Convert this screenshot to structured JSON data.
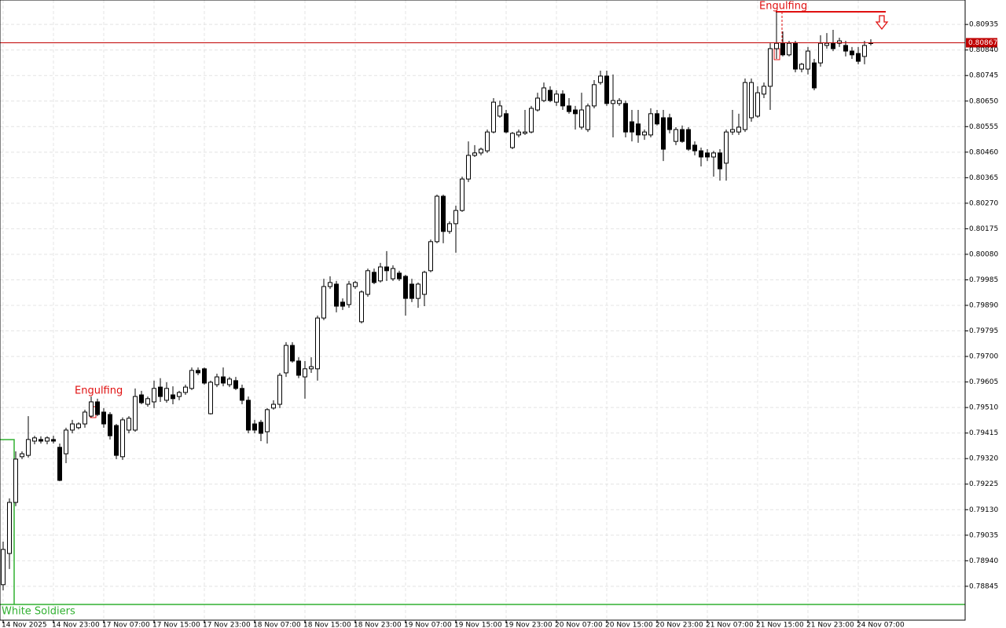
{
  "chart_data": {
    "type": "candlestick",
    "grid": true,
    "up_color": "#ffffff",
    "down_color": "#000000",
    "outline_color": "#000000",
    "current_price": 0.80867,
    "current_price_color": "#c00000",
    "annotations": [
      "Engulfing",
      "Engulfing",
      "White Soldiers"
    ],
    "ylim": [
      0.78719,
      0.81026
    ],
    "yticks": [
      0.80935,
      {
        "value": 0.8084,
        "label": "0.80840"
      },
      0.80745,
      {
        "value": 0.8065,
        "label": "0.80650"
      },
      0.80555,
      {
        "value": 0.8046,
        "label": "0.80460"
      },
      0.80365,
      {
        "value": 0.8027,
        "label": "0.80270"
      },
      0.80175,
      {
        "value": 0.8008,
        "label": "0.80080"
      },
      0.79985,
      {
        "value": 0.7989,
        "label": "0.79890"
      },
      0.79795,
      {
        "value": 0.797,
        "label": "0.79700"
      },
      0.79605,
      {
        "value": 0.7951,
        "label": "0.79510"
      },
      0.79415,
      {
        "value": 0.7932,
        "label": "0.79320"
      },
      0.79225,
      {
        "value": 0.7913,
        "label": "0.79130"
      },
      0.79035,
      {
        "value": 0.7894,
        "label": "0.78940"
      },
      0.78845
    ],
    "categories": [
      "14 Nov 2025",
      null,
      null,
      null,
      null,
      null,
      null,
      null,
      "14 Nov 23:00",
      null,
      null,
      null,
      null,
      null,
      null,
      null,
      "17 Nov 07:00",
      null,
      null,
      null,
      null,
      null,
      null,
      null,
      "17 Nov 15:00",
      null,
      null,
      null,
      null,
      null,
      null,
      null,
      "17 Nov 23:00",
      null,
      null,
      null,
      null,
      null,
      null,
      null,
      "18 Nov 07:00",
      null,
      null,
      null,
      null,
      null,
      null,
      null,
      "18 Nov 15:00",
      null,
      null,
      null,
      null,
      null,
      null,
      null,
      "18 Nov 23:00",
      null,
      null,
      null,
      null,
      null,
      null,
      null,
      "19 Nov 07:00",
      null,
      null,
      null,
      null,
      null,
      null,
      null,
      "19 Nov 15:00",
      null,
      null,
      null,
      null,
      null,
      null,
      null,
      "19 Nov 23:00",
      null,
      null,
      null,
      null,
      null,
      null,
      null,
      "20 Nov 07:00",
      null,
      null,
      null,
      null,
      null,
      null,
      null,
      "20 Nov 15:00",
      null,
      null,
      null,
      null,
      null,
      null,
      null,
      "20 Nov 23:00",
      null,
      null,
      null,
      null,
      null,
      null,
      null,
      "21 Nov 07:00",
      null,
      null,
      null,
      null,
      null,
      null,
      null,
      "21 Nov 15:00",
      null,
      null,
      null,
      null,
      null,
      null,
      null,
      "21 Nov 23:00",
      null,
      null,
      null,
      null,
      null,
      null,
      null,
      "24 Nov 07:00",
      null,
      null
    ],
    "open": [
      0.78851,
      0.78967,
      0.79157,
      0.79327,
      0.79332,
      0.79385,
      0.79391,
      0.79385,
      0.79391,
      0.79362,
      0.79338,
      0.79426,
      0.79435,
      0.79449,
      0.79478,
      0.79531,
      0.79493,
      0.79484,
      0.79443,
      0.79327,
      0.79426,
      0.79426,
      0.79557,
      0.79522,
      0.79531,
      0.79586,
      0.79537,
      0.79557,
      0.79551,
      0.79566,
      0.79581,
      0.79648,
      0.79654,
      0.79487,
      0.79595,
      0.79624,
      0.79595,
      0.7961,
      0.79581,
      0.79537,
      0.79449,
      0.79455,
      0.7942,
      0.79508,
      0.79522,
      0.79639,
      0.79741,
      0.79683,
      0.79624,
      0.79654,
      0.79654,
      0.79843,
      0.7996,
      0.79969,
      0.79902,
      0.79893,
      0.7996,
      0.79829,
      0.79931,
      0.80013,
      0.79981,
      0.80033,
      0.79989,
      0.8001,
      0.79998,
      0.79969,
      0.79916,
      0.79931,
      0.80019,
      0.80127,
      0.80296,
      0.80165,
      0.80194,
      0.80243,
      0.8036,
      0.80448,
      0.80457,
      0.80465,
      0.80535,
      0.80594,
      0.80603,
      0.80477,
      0.80524,
      0.8053,
      0.80535,
      0.80617,
      0.80652,
      0.8069,
      0.80646,
      0.80676,
      0.80632,
      0.80617,
      0.80553,
      0.80544,
      0.80632,
      0.80719,
      0.80743,
      0.80641,
      0.80641,
      0.80641,
      0.80573,
      0.80565,
      0.80524,
      0.80524,
      0.80603,
      0.80588,
      0.80588,
      0.805,
      0.80544,
      0.80544,
      0.80486,
      0.80465,
      0.80457,
      0.80442,
      0.80457,
      0.80419,
      0.80535,
      0.80535,
      0.80544,
      0.80588,
      0.80594,
      0.80676,
      0.80705,
      0.80845,
      0.80865,
      0.80822,
      0.80865,
      0.80769,
      0.80769,
      0.80792,
      0.80792,
      0.80857,
      0.80865,
      0.80865,
      0.80857,
      0.80836,
      0.80827,
      0.80816,
      0.80865
    ],
    "high": [
      0.79011,
      0.79172,
      0.79347,
      0.79347,
      0.79478,
      0.79405,
      0.79403,
      0.79403,
      0.79405,
      0.79376,
      0.79435,
      0.79464,
      0.79455,
      0.79502,
      0.79551,
      0.79543,
      0.79508,
      0.79493,
      0.79449,
      0.79473,
      0.79478,
      0.79581,
      0.79572,
      0.79551,
      0.7961,
      0.79619,
      0.79604,
      0.79589,
      0.79572,
      0.79595,
      0.79659,
      0.79659,
      0.79659,
      0.7961,
      0.79636,
      0.79659,
      0.79624,
      0.79624,
      0.79595,
      0.79551,
      0.79464,
      0.79464,
      0.79508,
      0.79537,
      0.79639,
      0.79753,
      0.79753,
      0.79697,
      0.79683,
      0.79697,
      0.79852,
      0.79989,
      0.79998,
      0.79981,
      0.79916,
      0.79981,
      0.79981,
      0.79946,
      0.80027,
      0.80027,
      0.80048,
      0.80092,
      0.80039,
      0.80019,
      0.80004,
      0.79989,
      0.79975,
      0.80019,
      0.80135,
      0.80302,
      0.80302,
      0.80203,
      0.80261,
      0.80369,
      0.805,
      0.80486,
      0.80477,
      0.80544,
      0.80661,
      0.80652,
      0.80617,
      0.80535,
      0.80544,
      0.80617,
      0.80632,
      0.80681,
      0.80719,
      0.80705,
      0.8069,
      0.8069,
      0.80661,
      0.80632,
      0.80681,
      0.80641,
      0.80728,
      0.80763,
      0.80763,
      0.80749,
      0.80661,
      0.80652,
      0.80617,
      0.80617,
      0.80544,
      0.80623,
      0.80617,
      0.80617,
      0.80603,
      0.80553,
      0.80559,
      0.80553,
      0.805,
      0.80477,
      0.80471,
      0.80465,
      0.80471,
      0.80544,
      0.80617,
      0.80603,
      0.80734,
      0.80734,
      0.80705,
      0.80719,
      0.80865,
      0.80982,
      0.80909,
      0.80874,
      0.80874,
      0.80792,
      0.80851,
      0.80807,
      0.80895,
      0.80903,
      0.80915,
      0.80886,
      0.80874,
      0.80851,
      0.80851,
      0.80874,
      0.8088
    ],
    "low": [
      0.7883,
      0.78909,
      0.79143,
      0.79318,
      0.79324,
      0.79373,
      0.79376,
      0.79373,
      0.79376,
      0.79236,
      0.79303,
      0.79414,
      0.79429,
      0.79435,
      0.79473,
      0.79478,
      0.79435,
      0.79391,
      0.79318,
      0.79315,
      0.79414,
      0.7942,
      0.79522,
      0.79513,
      0.79508,
      0.79531,
      0.79528,
      0.79522,
      0.79537,
      0.79557,
      0.79575,
      0.7963,
      0.79595,
      0.79484,
      0.79586,
      0.79589,
      0.79586,
      0.79575,
      0.79522,
      0.79414,
      0.79414,
      0.79385,
      0.79376,
      0.79502,
      0.79508,
      0.79624,
      0.79677,
      0.79619,
      0.79543,
      0.79639,
      0.7961,
      0.79835,
      0.79951,
      0.79864,
      0.79873,
      0.79881,
      0.79951,
      0.79823,
      0.79922,
      0.79969,
      0.79975,
      0.79981,
      0.79981,
      0.79981,
      0.79852,
      0.79902,
      0.79881,
      0.79887,
      0.80013,
      0.80121,
      0.80121,
      0.80156,
      0.80086,
      0.80238,
      0.80349,
      0.80442,
      0.80448,
      0.80457,
      0.8053,
      0.80588,
      0.8053,
      0.80471,
      0.80515,
      0.80524,
      0.8053,
      0.80611,
      0.80646,
      0.80646,
      0.80632,
      0.80617,
      0.80603,
      0.80544,
      0.80544,
      0.80535,
      0.80623,
      0.80711,
      0.80632,
      0.80515,
      0.80632,
      0.80515,
      0.805,
      0.80495,
      0.80506,
      0.80515,
      0.80559,
      0.80427,
      0.8053,
      0.80486,
      0.80495,
      0.80465,
      0.80448,
      0.80407,
      0.80427,
      0.80369,
      0.80354,
      0.80354,
      0.80524,
      0.80524,
      0.80535,
      0.80573,
      0.80588,
      0.80661,
      0.80617,
      0.80807,
      0.80816,
      0.80816,
      0.80757,
      0.80757,
      0.80749,
      0.8069,
      0.80778,
      0.80845,
      0.80836,
      0.80851,
      0.80816,
      0.80807,
      0.80787,
      0.80787,
      0.80857
    ],
    "close": [
      0.78982,
      0.79157,
      0.79318,
      0.79338,
      0.79391,
      0.79397,
      0.79385,
      0.79397,
      0.79385,
      0.79239,
      0.79426,
      0.79449,
      0.79449,
      0.79493,
      0.79531,
      0.79484,
      0.79449,
      0.79405,
      0.79332,
      0.79464,
      0.7947,
      0.79551,
      0.79528,
      0.79543,
      0.79581,
      0.79551,
      0.79581,
      0.79543,
      0.79566,
      0.79586,
      0.79648,
      0.79639,
      0.79601,
      0.79604,
      0.79624,
      0.79601,
      0.79616,
      0.79581,
      0.79537,
      0.79426,
      0.79426,
      0.79414,
      0.79502,
      0.79522,
      0.7963,
      0.79741,
      0.79683,
      0.7963,
      0.79654,
      0.79662,
      0.79843,
      0.7996,
      0.79975,
      0.79887,
      0.79887,
      0.79969,
      0.79975,
      0.7994,
      0.80019,
      0.79975,
      0.80033,
      0.80019,
      0.80027,
      0.79989,
      0.79916,
      0.79916,
      0.79969,
      0.80013,
      0.80127,
      0.80296,
      0.80165,
      0.80194,
      0.80243,
      0.8036,
      0.80448,
      0.80457,
      0.80471,
      0.80535,
      0.80646,
      0.80632,
      0.80535,
      0.8053,
      0.80535,
      0.80535,
      0.80623,
      0.80661,
      0.80699,
      0.80652,
      0.80676,
      0.80632,
      0.80611,
      0.80603,
      0.80617,
      0.80632,
      0.80711,
      0.80743,
      0.80641,
      0.80652,
      0.80652,
      0.80535,
      0.80535,
      0.80524,
      0.80535,
      0.80603,
      0.80565,
      0.80471,
      0.80544,
      0.80544,
      0.805,
      0.80471,
      0.80465,
      0.80442,
      0.80442,
      0.80457,
      0.80398,
      0.80535,
      0.80544,
      0.80553,
      0.80719,
      0.80719,
      0.80681,
      0.80705,
      0.80845,
      0.80865,
      0.80822,
      0.80865,
      0.80769,
      0.80787,
      0.80836,
      0.80699,
      0.80865,
      0.80865,
      0.80845,
      0.80874,
      0.80836,
      0.80822,
      0.80798,
      0.80857,
      0.80867
    ]
  }
}
